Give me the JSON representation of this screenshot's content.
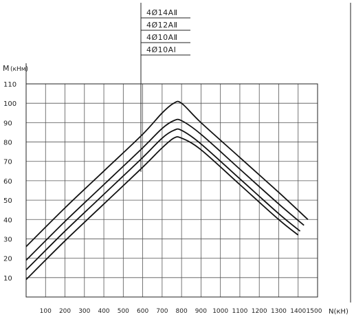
{
  "chart_data": {
    "type": "line",
    "ylabel": "M",
    "ylabel_unit": "(кНм)",
    "xlabel": "N(кН)",
    "xlim": [
      0,
      1500
    ],
    "ylim": [
      0,
      110
    ],
    "grid": true,
    "x_ticks": [
      {
        "value": 100,
        "label": "100"
      },
      {
        "value": 200,
        "label": "200"
      },
      {
        "value": 300,
        "label": "300"
      },
      {
        "value": 400,
        "label": "400"
      },
      {
        "value": 500,
        "label": "500"
      },
      {
        "value": 600,
        "label": "600"
      },
      {
        "value": 700,
        "label": "700"
      },
      {
        "value": 800,
        "label": "800"
      },
      {
        "value": 900,
        "label": "900"
      },
      {
        "value": 1000,
        "label": "1000"
      },
      {
        "value": 1100,
        "label": "1100"
      },
      {
        "value": 1200,
        "label": "1200"
      },
      {
        "value": 1300,
        "label": "1300"
      },
      {
        "value": 1400,
        "label": "1400"
      },
      {
        "value": 1500,
        "label": "1500"
      }
    ],
    "y_ticks": [
      {
        "value": 10,
        "label": "10"
      },
      {
        "value": 20,
        "label": "20"
      },
      {
        "value": 30,
        "label": "30"
      },
      {
        "value": 40,
        "label": "40"
      },
      {
        "value": 50,
        "label": "50"
      },
      {
        "value": 60,
        "label": "60"
      },
      {
        "value": 70,
        "label": "70"
      },
      {
        "value": 80,
        "label": "80"
      },
      {
        "value": 90,
        "label": "90"
      },
      {
        "value": 100,
        "label": "100"
      },
      {
        "value": 110,
        "label": "110"
      }
    ],
    "legend": [
      "4Ø14АⅡ",
      "4Ø12АⅡ",
      "4Ø10АⅡ",
      "4Ø10АⅠ"
    ],
    "series": [
      {
        "name": "4Ø14АⅡ",
        "x": [
          0,
          200,
          400,
          600,
          700,
          760,
          800,
          900,
          1100,
          1300,
          1450
        ],
        "y": [
          26,
          46,
          65,
          84,
          95,
          100,
          100,
          90,
          72,
          54,
          40
        ]
      },
      {
        "name": "4Ø12АⅡ",
        "x": [
          0,
          200,
          400,
          600,
          700,
          760,
          800,
          900,
          1100,
          1300,
          1430
        ],
        "y": [
          19,
          39,
          58,
          77,
          87,
          91,
          91,
          84,
          66,
          48,
          37
        ]
      },
      {
        "name": "4Ø10АⅡ",
        "x": [
          0,
          200,
          400,
          600,
          700,
          760,
          800,
          900,
          1100,
          1300,
          1410
        ],
        "y": [
          14,
          34,
          53,
          72,
          82,
          86,
          86,
          79,
          61,
          43,
          34
        ]
      },
      {
        "name": "4Ø10АⅠ",
        "x": [
          0,
          200,
          400,
          600,
          700,
          760,
          800,
          900,
          1100,
          1300,
          1400
        ],
        "y": [
          9,
          29,
          48,
          67,
          77,
          82,
          82,
          76,
          58,
          40,
          32
        ]
      }
    ]
  }
}
